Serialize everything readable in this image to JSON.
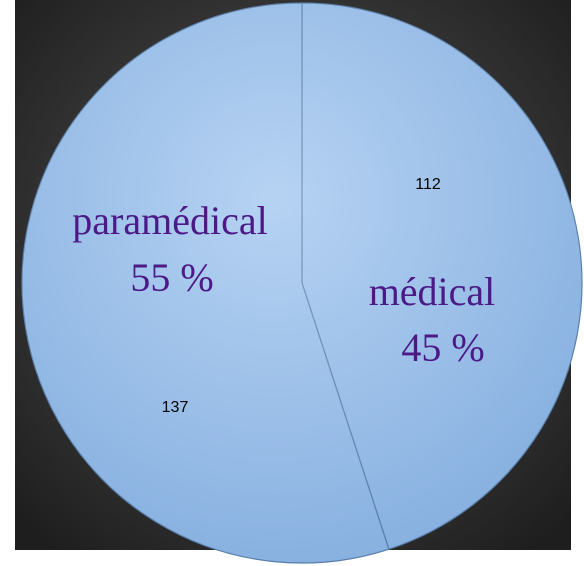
{
  "chart_data": {
    "type": "pie",
    "categories": [
      "médical",
      "paramédical"
    ],
    "values": [
      112,
      137
    ],
    "percentages": [
      45,
      55
    ],
    "percentage_labels": [
      "45 %",
      "55 %"
    ],
    "colors": [
      "#9ec4ef",
      "#9ec4ef"
    ],
    "start_angle": 0,
    "direction": "clockwise"
  }
}
